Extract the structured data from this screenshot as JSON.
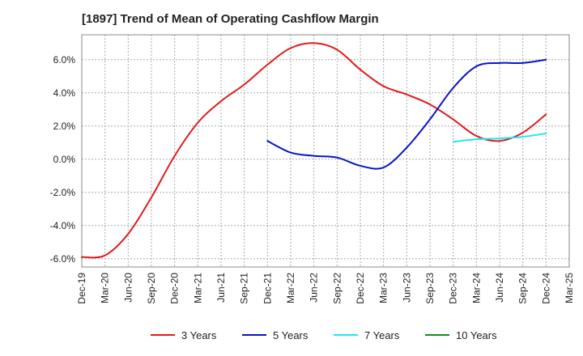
{
  "chart_data": {
    "type": "line",
    "title": "[1897]  Trend of Mean of Operating Cashflow Margin",
    "xlabel": "",
    "ylabel": "",
    "x_ticks": [
      "Dec-19",
      "Mar-20",
      "Jun-20",
      "Sep-20",
      "Dec-20",
      "Mar-21",
      "Jun-21",
      "Sep-21",
      "Dec-21",
      "Mar-22",
      "Jun-22",
      "Sep-22",
      "Dec-22",
      "Mar-23",
      "Jun-23",
      "Sep-23",
      "Dec-23",
      "Mar-24",
      "Jun-24",
      "Sep-24",
      "Dec-24",
      "Mar-25"
    ],
    "y_ticks": [
      "6.0%",
      "4.0%",
      "2.0%",
      "0.0%",
      "-2.0%",
      "-4.0%",
      "-6.0%"
    ],
    "y_tick_values": [
      6,
      4,
      2,
      0,
      -2,
      -4,
      -6
    ],
    "ylim": [
      -6.5,
      7.5
    ],
    "grid": true,
    "legend_position": "bottom",
    "series": [
      {
        "name": "3 Years",
        "color": "#e31a1c",
        "x": [
          "Dec-19",
          "Mar-20",
          "Jun-20",
          "Sep-20",
          "Dec-20",
          "Mar-21",
          "Jun-21",
          "Sep-21",
          "Dec-21",
          "Mar-22",
          "Jun-22",
          "Sep-22",
          "Dec-22",
          "Mar-23",
          "Jun-23",
          "Sep-23",
          "Dec-23",
          "Mar-24",
          "Jun-24",
          "Sep-24",
          "Dec-24"
        ],
        "values": [
          -5.9,
          -5.8,
          -4.5,
          -2.3,
          0.2,
          2.2,
          3.5,
          4.5,
          5.7,
          6.7,
          7.0,
          6.6,
          5.4,
          4.4,
          3.9,
          3.3,
          2.4,
          1.4,
          1.1,
          1.6,
          2.7
        ]
      },
      {
        "name": "5 Years",
        "color": "#0a14c8",
        "x": [
          "Dec-21",
          "Mar-22",
          "Jun-22",
          "Sep-22",
          "Dec-22",
          "Mar-23",
          "Jun-23",
          "Sep-23",
          "Dec-23",
          "Mar-24",
          "Jun-24",
          "Sep-24",
          "Dec-24"
        ],
        "values": [
          1.1,
          0.4,
          0.2,
          0.1,
          -0.4,
          -0.5,
          0.7,
          2.4,
          4.3,
          5.6,
          5.8,
          5.8,
          6.0
        ]
      },
      {
        "name": "7 Years",
        "color": "#22e6f0",
        "x": [
          "Dec-23",
          "Mar-24",
          "Jun-24",
          "Sep-24",
          "Dec-24"
        ],
        "values": [
          1.05,
          1.2,
          1.25,
          1.35,
          1.55
        ]
      },
      {
        "name": "10 Years",
        "color": "#1a8a1a",
        "x": [],
        "values": []
      }
    ]
  }
}
